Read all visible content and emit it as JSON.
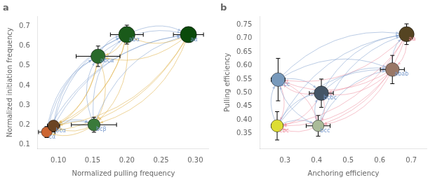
{
  "chart_data": [
    {
      "type": "scatter",
      "title": "a",
      "x_label": "Normalized pulling frequency",
      "y_label": "Normalized initiation frequency",
      "xlim": [
        0.07,
        0.32
      ],
      "ylim": [
        0.08,
        0.75
      ],
      "xticks": [
        {
          "value": 0.1,
          "label": "0.10"
        },
        {
          "value": 0.15,
          "label": "0.15"
        },
        {
          "value": 0.2,
          "label": "0.20"
        },
        {
          "value": 0.25,
          "label": "0.25"
        },
        {
          "value": 0.3,
          "label": "0.30"
        }
      ],
      "yticks": [
        0.1,
        0.2,
        0.3,
        0.4,
        0.5,
        0.6,
        0.7
      ],
      "grid": false,
      "arrow_colors": [
        "#7799cc",
        "#ddaa33"
      ],
      "series": [
        {
          "x": [
            0.083,
            0.093,
            0.152,
            0.158,
            0.2,
            0.29
          ],
          "values": [
            0.163,
            0.195,
            0.2,
            0.548,
            0.658,
            0.658
          ],
          "xerr": [
            0.012,
            0.009,
            0.033,
            0.032,
            0.024,
            0.022
          ],
          "yerr": [
            0.028,
            0.022,
            0.038,
            0.052,
            0.048,
            0.038
          ],
          "sizes": [
            120,
            140,
            160,
            220,
            280,
            280
          ],
          "colors": [
            "#cc6633",
            "#6b4423",
            "#3a7a3a",
            "#2a6a2a",
            "#1a5a1a",
            "#0a4a0a"
          ],
          "labels": [
            "cα",
            "bcα",
            "bcβ",
            "abcα",
            "abα",
            "aα"
          ],
          "label_colors": [
            "#7799cc",
            "#7799cc",
            "#7799cc",
            "#7799cc",
            "#7799cc",
            "#7799cc"
          ]
        }
      ]
    },
    {
      "type": "scatter",
      "title": "b",
      "x_label": "Anchoring efficiency",
      "y_label": "Pulling efficiency",
      "xlim": [
        0.22,
        0.75
      ],
      "ylim": [
        0.295,
        0.78
      ],
      "xticks": [
        0.3,
        0.4,
        0.5,
        0.6,
        0.7
      ],
      "yticks": [
        0.35,
        {
          "value": 0.4,
          "label": "0.40"
        },
        0.45,
        {
          "value": 0.5,
          "label": "0.50"
        },
        0.55,
        {
          "value": 0.6,
          "label": "0.60"
        },
        0.65,
        {
          "value": 0.7,
          "label": "0.70"
        },
        0.75
      ],
      "grid": false,
      "arrow_colors": [
        "#7799cc",
        "#ee8899"
      ],
      "series": [
        {
          "x": [
            0.275,
            0.405,
            0.278,
            0.415,
            0.64,
            0.685
          ],
          "values": [
            0.378,
            0.378,
            0.548,
            0.498,
            0.585,
            0.715
          ],
          "xerr": [
            0.018,
            0.038,
            0.022,
            0.038,
            0.038,
            0.022
          ],
          "yerr": [
            0.052,
            0.038,
            0.078,
            0.052,
            0.052,
            0.038
          ],
          "sizes": [
            160,
            140,
            200,
            220,
            200,
            240
          ],
          "colors": [
            "#dddd33",
            "#aabb99",
            "#7799bb",
            "#445566",
            "#997766",
            "#554422"
          ],
          "labels": [
            "cbc",
            "bcc",
            "bcc",
            "bcbc",
            "abab",
            "aa"
          ],
          "label_colors": [
            "#ee8899",
            "#7799cc",
            "#7799cc",
            "#7799cc",
            "#7799cc",
            "#ee8899"
          ]
        }
      ]
    }
  ]
}
